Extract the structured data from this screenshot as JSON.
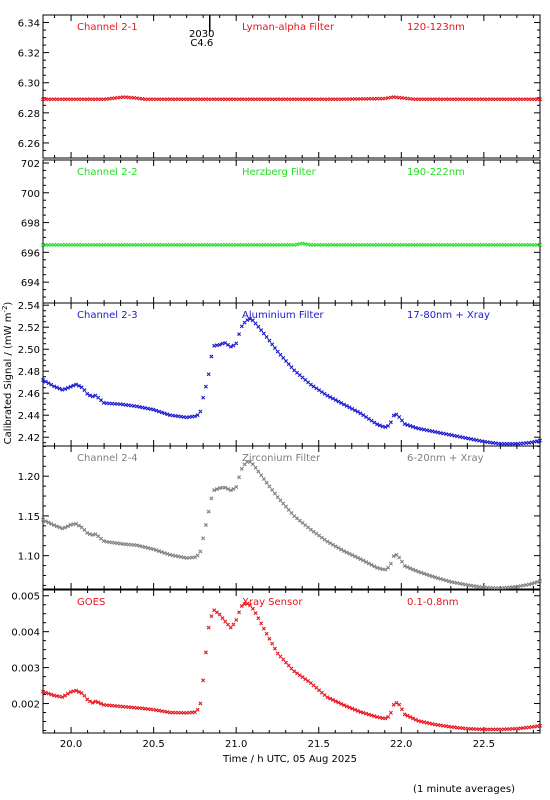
{
  "chart_data": {
    "type": "scatter",
    "x_range": [
      19.83,
      22.84
    ],
    "x_ticks": [
      20.0,
      20.5,
      21.0,
      21.5,
      22.0,
      22.5
    ],
    "x_tick_labels": [
      "20.0",
      "20.5",
      "21.0",
      "21.5",
      "22.0",
      "22.5"
    ],
    "xlabel": "Time / h UTC, 05 Aug 2025",
    "ylabel": "Calibrated Signal / (mW m",
    "ylabel_sup": "-2",
    "ylabel_end": ")",
    "footnote": "(1 minute averages)",
    "event_marker": {
      "x": 20.84,
      "label_top": "2030",
      "label_bottom": "C4.6"
    },
    "panels": [
      {
        "channel": "Channel 2-1",
        "filter": "Lyman-alpha Filter",
        "band": "120-123nm",
        "color": "#e8141c",
        "ylim": [
          6.25,
          6.345
        ],
        "y_ticks": [
          6.26,
          6.28,
          6.3,
          6.32,
          6.34
        ],
        "y_tick_labels": [
          "6.26",
          "6.28",
          "6.30",
          "6.32",
          "6.34"
        ],
        "points": [
          [
            19.83,
            6.289
          ],
          [
            20.0,
            6.289
          ],
          [
            20.2,
            6.289
          ],
          [
            20.28,
            6.29
          ],
          [
            20.32,
            6.2905
          ],
          [
            20.38,
            6.29
          ],
          [
            20.45,
            6.289
          ],
          [
            20.8,
            6.289
          ],
          [
            21.2,
            6.289
          ],
          [
            21.6,
            6.289
          ],
          [
            21.9,
            6.2895
          ],
          [
            21.95,
            6.2905
          ],
          [
            22.0,
            6.29
          ],
          [
            22.08,
            6.289
          ],
          [
            22.4,
            6.289
          ],
          [
            22.84,
            6.289
          ]
        ]
      },
      {
        "channel": "Channel 2-2",
        "filter": "Herzberg Filter",
        "band": "190-222nm",
        "color": "#22e022",
        "ylim": [
          692.6,
          702.2
        ],
        "y_ticks": [
          694,
          696,
          698,
          700,
          702
        ],
        "y_tick_labels": [
          "694",
          "696",
          "698",
          "700",
          "702"
        ],
        "points": [
          [
            19.83,
            696.5
          ],
          [
            20.5,
            696.5
          ],
          [
            21.0,
            696.5
          ],
          [
            21.35,
            696.5
          ],
          [
            21.4,
            696.6
          ],
          [
            21.45,
            696.5
          ],
          [
            22.0,
            696.5
          ],
          [
            22.84,
            696.5
          ]
        ]
      },
      {
        "channel": "Channel 2-3",
        "filter": "Aluminium Filter",
        "band": "17-80nm + Xray",
        "color": "#1a1ad0",
        "ylim": [
          2.412,
          2.542
        ],
        "y_ticks": [
          2.42,
          2.44,
          2.46,
          2.48,
          2.5,
          2.52,
          2.54
        ],
        "y_tick_labels": [
          "2.42",
          "2.44",
          "2.46",
          "2.48",
          "2.50",
          "2.52",
          "2.54"
        ],
        "points": [
          [
            19.83,
            2.472
          ],
          [
            19.9,
            2.466
          ],
          [
            19.95,
            2.463
          ],
          [
            20.0,
            2.466
          ],
          [
            20.03,
            2.468
          ],
          [
            20.07,
            2.465
          ],
          [
            20.1,
            2.459
          ],
          [
            20.13,
            2.457
          ],
          [
            20.15,
            2.458
          ],
          [
            20.2,
            2.451
          ],
          [
            20.3,
            2.45
          ],
          [
            20.4,
            2.448
          ],
          [
            20.5,
            2.445
          ],
          [
            20.6,
            2.44
          ],
          [
            20.7,
            2.438
          ],
          [
            20.75,
            2.439
          ],
          [
            20.78,
            2.441
          ],
          [
            20.8,
            2.456
          ],
          [
            20.83,
            2.474
          ],
          [
            20.86,
            2.503
          ],
          [
            20.9,
            2.504
          ],
          [
            20.93,
            2.506
          ],
          [
            20.97,
            2.502
          ],
          [
            21.0,
            2.505
          ],
          [
            21.03,
            2.52
          ],
          [
            21.06,
            2.526
          ],
          [
            21.09,
            2.528
          ],
          [
            21.12,
            2.523
          ],
          [
            21.18,
            2.512
          ],
          [
            21.25,
            2.498
          ],
          [
            21.35,
            2.481
          ],
          [
            21.45,
            2.468
          ],
          [
            21.55,
            2.458
          ],
          [
            21.65,
            2.45
          ],
          [
            21.75,
            2.442
          ],
          [
            21.85,
            2.432
          ],
          [
            21.9,
            2.429
          ],
          [
            21.93,
            2.431
          ],
          [
            21.96,
            2.442
          ],
          [
            21.99,
            2.438
          ],
          [
            22.02,
            2.432
          ],
          [
            22.1,
            2.428
          ],
          [
            22.2,
            2.425
          ],
          [
            22.3,
            2.422
          ],
          [
            22.4,
            2.419
          ],
          [
            22.5,
            2.416
          ],
          [
            22.6,
            2.414
          ],
          [
            22.7,
            2.414
          ],
          [
            22.78,
            2.415
          ],
          [
            22.84,
            2.417
          ]
        ]
      },
      {
        "channel": "Channel 2-4",
        "filter": "Zirconium Filter",
        "band": "6-20nm + Xray",
        "color": "#7f7f7f",
        "ylim": [
          1.058,
          1.238
        ],
        "y_ticks": [
          1.1,
          1.15,
          1.2
        ],
        "y_tick_labels": [
          "1.10",
          "1.15",
          "1.20"
        ],
        "points": [
          [
            19.83,
            1.145
          ],
          [
            19.9,
            1.138
          ],
          [
            19.95,
            1.134
          ],
          [
            20.0,
            1.139
          ],
          [
            20.03,
            1.14
          ],
          [
            20.07,
            1.135
          ],
          [
            20.1,
            1.128
          ],
          [
            20.13,
            1.126
          ],
          [
            20.15,
            1.127
          ],
          [
            20.2,
            1.118
          ],
          [
            20.3,
            1.115
          ],
          [
            20.4,
            1.113
          ],
          [
            20.5,
            1.108
          ],
          [
            20.6,
            1.101
          ],
          [
            20.7,
            1.097
          ],
          [
            20.75,
            1.098
          ],
          [
            20.78,
            1.102
          ],
          [
            20.8,
            1.122
          ],
          [
            20.83,
            1.152
          ],
          [
            20.86,
            1.182
          ],
          [
            20.9,
            1.185
          ],
          [
            20.93,
            1.186
          ],
          [
            20.97,
            1.182
          ],
          [
            21.0,
            1.186
          ],
          [
            21.03,
            1.208
          ],
          [
            21.06,
            1.218
          ],
          [
            21.09,
            1.218
          ],
          [
            21.12,
            1.21
          ],
          [
            21.18,
            1.193
          ],
          [
            21.25,
            1.174
          ],
          [
            21.35,
            1.15
          ],
          [
            21.45,
            1.133
          ],
          [
            21.55,
            1.118
          ],
          [
            21.65,
            1.106
          ],
          [
            21.75,
            1.096
          ],
          [
            21.85,
            1.085
          ],
          [
            21.9,
            1.082
          ],
          [
            21.93,
            1.086
          ],
          [
            21.96,
            1.103
          ],
          [
            21.99,
            1.097
          ],
          [
            22.02,
            1.087
          ],
          [
            22.1,
            1.08
          ],
          [
            22.2,
            1.073
          ],
          [
            22.3,
            1.067
          ],
          [
            22.4,
            1.063
          ],
          [
            22.5,
            1.06
          ],
          [
            22.6,
            1.059
          ],
          [
            22.7,
            1.061
          ],
          [
            22.78,
            1.064
          ],
          [
            22.84,
            1.068
          ]
        ]
      },
      {
        "channel": "GOES",
        "filter": "Xray Sensor",
        "band": "0.1-0.8nm",
        "color": "#e8141c",
        "ylim": [
          0.00118,
          0.00516
        ],
        "y_ticks": [
          0.002,
          0.003,
          0.004,
          0.005
        ],
        "y_tick_labels": [
          "0.002",
          "0.003",
          "0.004",
          "0.005"
        ],
        "points": [
          [
            19.83,
            0.00233
          ],
          [
            19.9,
            0.00222
          ],
          [
            19.95,
            0.00218
          ],
          [
            20.0,
            0.00233
          ],
          [
            20.03,
            0.00236
          ],
          [
            20.07,
            0.00228
          ],
          [
            20.1,
            0.0021
          ],
          [
            20.13,
            0.00202
          ],
          [
            20.15,
            0.00206
          ],
          [
            20.2,
            0.00196
          ],
          [
            20.3,
            0.00192
          ],
          [
            20.4,
            0.00188
          ],
          [
            20.5,
            0.00183
          ],
          [
            20.6,
            0.00175
          ],
          [
            20.7,
            0.00174
          ],
          [
            20.75,
            0.00176
          ],
          [
            20.78,
            0.00188
          ],
          [
            20.8,
            0.00265
          ],
          [
            20.83,
            0.00405
          ],
          [
            20.86,
            0.00462
          ],
          [
            20.9,
            0.00448
          ],
          [
            20.93,
            0.0043
          ],
          [
            20.97,
            0.0041
          ],
          [
            21.0,
            0.00432
          ],
          [
            21.03,
            0.0047
          ],
          [
            21.06,
            0.0048
          ],
          [
            21.09,
            0.00472
          ],
          [
            21.12,
            0.0045
          ],
          [
            21.18,
            0.00398
          ],
          [
            21.25,
            0.0034
          ],
          [
            21.35,
            0.0029
          ],
          [
            21.45,
            0.00258
          ],
          [
            21.55,
            0.00218
          ],
          [
            21.65,
            0.00196
          ],
          [
            21.75,
            0.00177
          ],
          [
            21.85,
            0.00163
          ],
          [
            21.9,
            0.00158
          ],
          [
            21.93,
            0.00165
          ],
          [
            21.96,
            0.00205
          ],
          [
            21.99,
            0.00196
          ],
          [
            22.02,
            0.0017
          ],
          [
            22.1,
            0.00152
          ],
          [
            22.2,
            0.00142
          ],
          [
            22.3,
            0.00135
          ],
          [
            22.4,
            0.0013
          ],
          [
            22.5,
            0.00128
          ],
          [
            22.6,
            0.00128
          ],
          [
            22.7,
            0.0013
          ],
          [
            22.78,
            0.00134
          ],
          [
            22.84,
            0.00138
          ]
        ]
      }
    ]
  }
}
